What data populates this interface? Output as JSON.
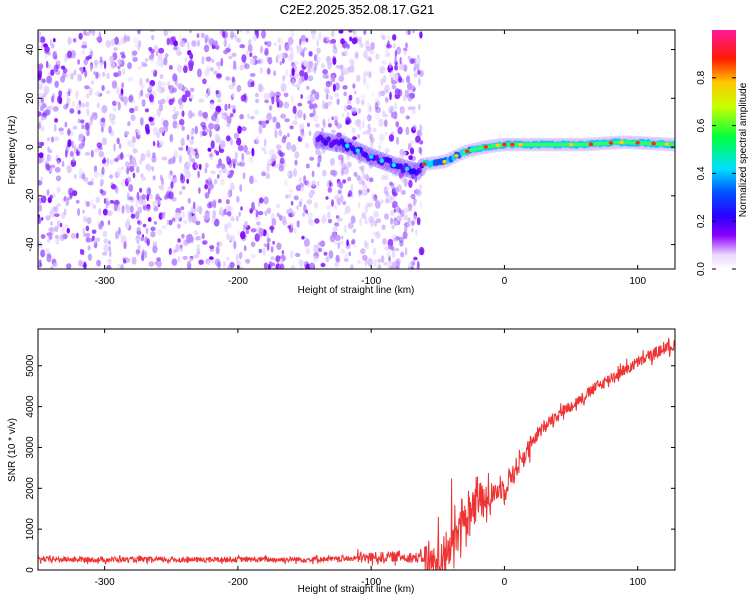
{
  "title": "C2E2.2025.352.08.17.G21",
  "chart_data": [
    {
      "type": "heatmap",
      "title": "C2E2.2025.352.08.17.G21",
      "xlabel": "Height of straight line (km)",
      "ylabel": "Frequency (Hz)",
      "xlim": [
        -350,
        128
      ],
      "ylim": [
        -50,
        48
      ],
      "xticks": [
        -300,
        -200,
        -100,
        0,
        100
      ],
      "yticks": [
        -40,
        -20,
        0,
        20,
        40
      ],
      "colorbar": {
        "label": "Normalized spectral amplitude",
        "range": [
          0.0,
          1.0
        ],
        "ticks": [
          0.0,
          0.2,
          0.4,
          0.6,
          0.8
        ],
        "tick_labels": [
          "0.0",
          "0.2",
          "0.4",
          "0.6",
          "0.8"
        ],
        "colormap": "rainbow (white → purple → blue → cyan → green → yellow → red → magenta)"
      },
      "features": {
        "noise_region_x": [
          -350,
          -62
        ],
        "trace_points": [
          {
            "x": -140,
            "y": 3
          },
          {
            "x": -120,
            "y": 1
          },
          {
            "x": -100,
            "y": -4
          },
          {
            "x": -80,
            "y": -8
          },
          {
            "x": -65,
            "y": -10
          },
          {
            "x": -60,
            "y": -7
          },
          {
            "x": -45,
            "y": -6
          },
          {
            "x": -30,
            "y": -2
          },
          {
            "x": -15,
            "y": 0
          },
          {
            "x": 0,
            "y": 1
          },
          {
            "x": 30,
            "y": 1
          },
          {
            "x": 60,
            "y": 1
          },
          {
            "x": 90,
            "y": 2
          },
          {
            "x": 128,
            "y": 1
          }
        ]
      }
    },
    {
      "type": "line",
      "title": "",
      "xlabel": "Height of straight line (km)",
      "ylabel": "SNR (10 * v/v)",
      "xlim": [
        -350,
        128
      ],
      "ylim": [
        0,
        5900
      ],
      "xticks": [
        -300,
        -200,
        -100,
        0,
        100
      ],
      "yticks": [
        0,
        1000,
        2000,
        3000,
        4000,
        5000
      ],
      "series": [
        {
          "name": "SNR",
          "color": "#ee3333",
          "x": [
            -350,
            -300,
            -250,
            -200,
            -150,
            -120,
            -100,
            -80,
            -60,
            -50,
            -40,
            -30,
            -20,
            -10,
            0,
            10,
            20,
            30,
            40,
            50,
            60,
            70,
            80,
            90,
            100,
            110,
            120,
            128
          ],
          "values": [
            260,
            255,
            250,
            255,
            260,
            270,
            310,
            330,
            290,
            220,
            550,
            1250,
            1650,
            1850,
            2050,
            2550,
            3050,
            3550,
            3820,
            4020,
            4250,
            4500,
            4700,
            4900,
            5080,
            5250,
            5420,
            5500
          ]
        }
      ]
    }
  ]
}
